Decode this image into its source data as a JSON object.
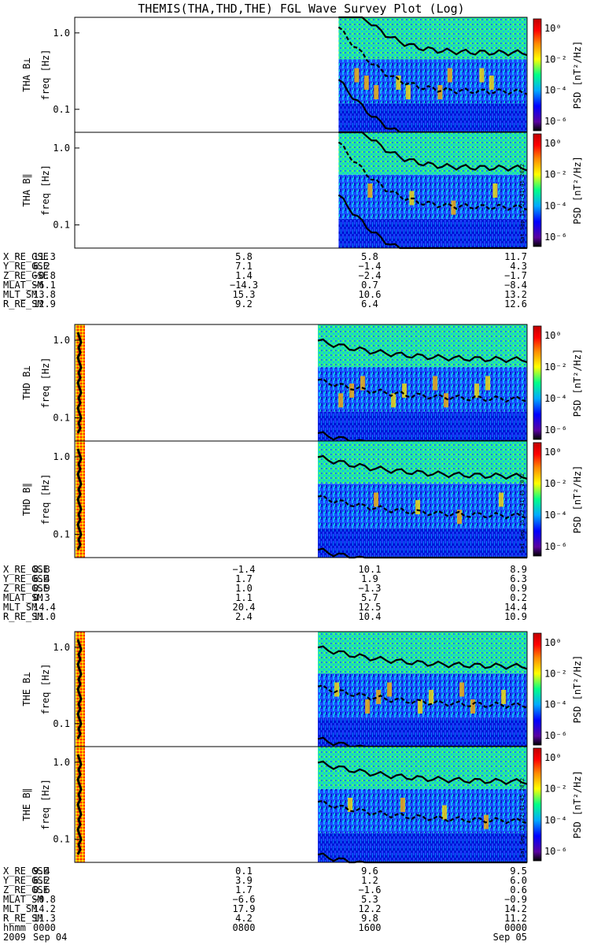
{
  "title": "THEMIS(THA,THD,THE) FGL Wave Survey Plot (Log)",
  "colorbar": {
    "label": "PSD [nT²/Hz]",
    "ticks": [
      "10⁰",
      "10⁻²",
      "10⁻⁴",
      "10⁻⁶"
    ]
  },
  "stamp": "Sat Sep 15 22:41:45 2012",
  "chart_data": {
    "type": "heatmap",
    "title": "THEMIS(THA,THD,THE) FGL Wave Survey Plot (Log)",
    "ylim": [
      0.05,
      1.6
    ],
    "y_scale": "log",
    "y_ticks": [
      "1.0",
      "0.1"
    ],
    "x_ticks": [
      "0000",
      "0800",
      "1600",
      "0000"
    ],
    "time_range": [
      "2009 Sep 04 0000",
      "2009 Sep 05 0000"
    ],
    "colorbar_range": [
      "10⁻⁶",
      "10⁰"
    ],
    "colormap": [
      "#000000",
      "#5a00a0",
      "#0000ff",
      "#00aaff",
      "#00ff88",
      "#ffff00",
      "#ff8800",
      "#ff0000",
      "#c00000"
    ],
    "panels": [
      {
        "probe": "THA",
        "component": "THA B⊥",
        "ylabel": "freq [Hz]",
        "data_start_hour": 14.0
      },
      {
        "probe": "THA",
        "component": "THA B∥",
        "ylabel": "freq [Hz]",
        "data_start_hour": 14.0
      },
      {
        "probe": "THD",
        "component": "THD B⊥",
        "ylabel": "freq [Hz]",
        "data_start_hour": 12.9
      },
      {
        "probe": "THD",
        "component": "THD B∥",
        "ylabel": "freq [Hz]",
        "data_start_hour": 12.9
      },
      {
        "probe": "THE",
        "component": "THE B⊥",
        "ylabel": "freq [Hz]",
        "data_start_hour": 12.9
      },
      {
        "probe": "THE",
        "component": "THE B∥",
        "ylabel": "freq [Hz]",
        "data_start_hour": 12.9
      }
    ],
    "ephemeris": [
      {
        "probe": "THA",
        "rows": [
          {
            "label": "X_RE_GSE",
            "values": [
              "11.3",
              "5.8",
              "5.8",
              "11.7"
            ]
          },
          {
            "label": "Y_RE_GSE",
            "values": [
              "6.2",
              "7.1",
              "−1.4",
              "4.3"
            ]
          },
          {
            "label": "Z_RE_GSE",
            "values": [
              "−0.8",
              "1.4",
              "−2.4",
              "−1.7"
            ]
          },
          {
            "label": "MLAT_SM",
            "values": [
              "−6.1",
              "−14.3",
              "0.7",
              "−8.4"
            ]
          },
          {
            "label": "MLT_SM",
            "values": [
              "13.8",
              "15.3",
              "10.6",
              "13.2"
            ]
          },
          {
            "label": "R_RE_SM",
            "values": [
              "12.9",
              "9.2",
              "6.4",
              "12.6"
            ]
          }
        ]
      },
      {
        "probe": "THD",
        "rows": [
          {
            "label": "X_RE_GSE",
            "values": [
              "8.8",
              "−1.4",
              "10.1",
              "8.9"
            ]
          },
          {
            "label": "Y_RE_GSE",
            "values": [
              "6.4",
              "1.7",
              "1.9",
              "6.3"
            ]
          },
          {
            "label": "Z_RE_GSE",
            "values": [
              "0.9",
              "1.0",
              "−1.3",
              "0.9"
            ]
          },
          {
            "label": "MLAT_SM",
            "values": [
              "0.3",
              "1.1",
              "5.7",
              "0.2"
            ]
          },
          {
            "label": "MLT_SM",
            "values": [
              "14.4",
              "20.4",
              "12.5",
              "14.4"
            ]
          },
          {
            "label": "R_RE_SM",
            "values": [
              "11.0",
              "2.4",
              "10.4",
              "10.9"
            ]
          }
        ]
      },
      {
        "probe": "THE",
        "rows": [
          {
            "label": "X_RE_GSE",
            "values": [
              "9.4",
              "0.1",
              "9.6",
              "9.5"
            ]
          },
          {
            "label": "Y_RE_GSE",
            "values": [
              "6.2",
              "3.9",
              "1.2",
              "6.0"
            ]
          },
          {
            "label": "Z_RE_GSE",
            "values": [
              "0.6",
              "1.7",
              "−1.6",
              "0.6"
            ]
          },
          {
            "label": "MLAT_SM",
            "values": [
              "−0.8",
              "−6.6",
              "5.3",
              "−0.9"
            ]
          },
          {
            "label": "MLT_SM",
            "values": [
              "14.2",
              "17.9",
              "12.2",
              "14.2"
            ]
          },
          {
            "label": "R_RE_SM",
            "values": [
              "11.3",
              "4.2",
              "9.8",
              "11.2"
            ]
          },
          {
            "label": "hhmm",
            "values": [
              "0000",
              "0800",
              "1600",
              "0000"
            ]
          },
          {
            "label": "2009",
            "values": [
              "Sep 04",
              "",
              "",
              "Sep 05"
            ]
          }
        ]
      }
    ]
  }
}
